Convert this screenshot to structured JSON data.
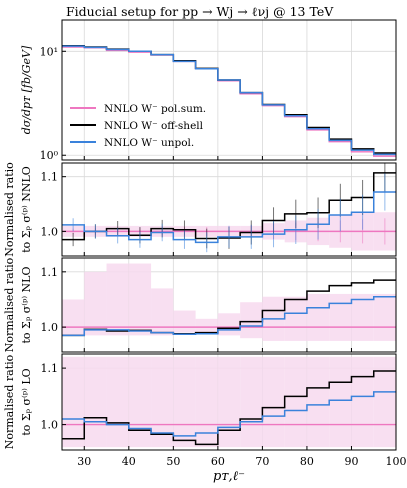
{
  "title": "Fiducial setup for pp → Wj → ℓνj @ 13 TeV",
  "colors": {
    "pol_sum": "#ee77c0",
    "off_shell": "#000000",
    "unpol": "#3a82db",
    "band": "#f7d9ee",
    "grid": "#d9d9d9"
  },
  "chart_data": [
    {
      "type": "line",
      "drawstyle": "steps",
      "ylabel": "dσ/dpᴛ [fb/GeV]",
      "yscale": "log",
      "ylim": [
        0.9,
        20
      ],
      "y_ticks": [
        {
          "v": 1,
          "label": "10⁰"
        },
        {
          "v": 10,
          "label": "10¹"
        }
      ],
      "x_edges": [
        25,
        30,
        35,
        40,
        45,
        50,
        55,
        60,
        65,
        70,
        75,
        80,
        85,
        90,
        95,
        100
      ],
      "legend": {
        "placement": "center-left",
        "entries": [
          "NNLO W⁻ pol.sum.",
          "NNLO W⁻ off-shell",
          "NNLO W⁻ unpol."
        ]
      },
      "series": [
        {
          "name": "NNLO W⁻ pol.sum.",
          "color_key": "pol_sum",
          "values": [
            11.0,
            10.8,
            10.2,
            9.8,
            9.2,
            8.0,
            6.8,
            5.2,
            3.9,
            3.0,
            2.35,
            1.75,
            1.35,
            1.08,
            0.98
          ]
        },
        {
          "name": "NNLO W⁻ off-shell",
          "color_key": "off_shell",
          "values": [
            11.3,
            11.0,
            10.5,
            10.0,
            9.3,
            8.1,
            6.85,
            5.3,
            4.0,
            3.08,
            2.45,
            1.85,
            1.43,
            1.15,
            1.05
          ]
        },
        {
          "name": "NNLO W⁻ unpol.",
          "color_key": "unpol",
          "values": [
            11.2,
            10.9,
            10.4,
            10.0,
            9.3,
            8.0,
            6.8,
            5.3,
            4.0,
            3.05,
            2.4,
            1.8,
            1.39,
            1.12,
            1.02
          ]
        }
      ]
    },
    {
      "type": "line",
      "drawstyle": "steps",
      "ylabel": [
        "Normalised ratio",
        "to Σₚ σ⁽ᵖ⁾ NNLO"
      ],
      "ylim": [
        0.955,
        1.125
      ],
      "y_ticks": [
        {
          "v": 1.0,
          "label": "1.0"
        },
        {
          "v": 1.1,
          "label": "1.1"
        }
      ],
      "x_edges": [
        25,
        30,
        35,
        40,
        45,
        50,
        55,
        60,
        65,
        70,
        75,
        80,
        85,
        90,
        95,
        100
      ],
      "band": {
        "lower": [
          0.99,
          0.99,
          0.99,
          0.99,
          0.99,
          0.99,
          0.99,
          0.99,
          0.99,
          0.985,
          0.98,
          0.975,
          0.97,
          0.965,
          0.965
        ],
        "upper": [
          1.01,
          1.01,
          1.01,
          1.01,
          1.01,
          1.01,
          1.01,
          1.01,
          1.01,
          1.015,
          1.02,
          1.025,
          1.03,
          1.035,
          1.035
        ]
      },
      "series": [
        {
          "name": "NNLO W⁻ pol.sum.",
          "color_key": "pol_sum",
          "values": [
            1.0,
            1.0,
            1.0,
            1.0,
            1.0,
            1.0,
            1.0,
            1.0,
            1.0,
            1.0,
            1.0,
            1.0,
            1.0,
            1.0,
            1.0
          ],
          "errors": [
            0.005,
            0.006,
            0.006,
            0.006,
            0.007,
            0.008,
            0.008,
            0.01,
            0.012,
            0.014,
            0.016,
            0.018,
            0.02,
            0.022,
            0.024
          ]
        },
        {
          "name": "NNLO W⁻ off-shell",
          "color_key": "off_shell",
          "values": [
            0.985,
            1.0,
            1.005,
            0.993,
            1.005,
            1.003,
            0.987,
            0.988,
            0.998,
            1.02,
            1.032,
            1.034,
            1.057,
            1.062,
            1.107
          ],
          "errors": [
            0.012,
            0.013,
            0.014,
            0.015,
            0.016,
            0.017,
            0.018,
            0.02,
            0.022,
            0.024,
            0.026,
            0.028,
            0.03,
            0.032,
            0.034
          ]
        },
        {
          "name": "NNLO W⁻ unpol.",
          "color_key": "unpol",
          "values": [
            1.012,
            1.0,
            0.992,
            0.985,
            0.998,
            0.985,
            0.98,
            0.99,
            0.99,
            0.995,
            1.003,
            1.013,
            1.03,
            1.035,
            1.072
          ],
          "errors": [
            0.012,
            0.013,
            0.014,
            0.015,
            0.016,
            0.017,
            0.018,
            0.02,
            0.022,
            0.024,
            0.026,
            0.028,
            0.03,
            0.032,
            0.034
          ]
        }
      ]
    },
    {
      "type": "line",
      "drawstyle": "steps",
      "ylabel": [
        "Normalised ratio",
        "to Σₚ σ⁽ᵖ⁾ NLO"
      ],
      "ylim": [
        0.955,
        1.125
      ],
      "y_ticks": [
        {
          "v": 1.0,
          "label": "1.0"
        },
        {
          "v": 1.1,
          "label": "1.1"
        }
      ],
      "x_edges": [
        25,
        30,
        35,
        40,
        45,
        50,
        55,
        60,
        65,
        70,
        75,
        80,
        85,
        90,
        95,
        100
      ],
      "band": {
        "lower": [
          0.985,
          0.985,
          0.985,
          0.985,
          0.985,
          0.99,
          0.99,
          0.985,
          0.98,
          0.975,
          0.975,
          0.975,
          0.975,
          0.975,
          0.975
        ],
        "upper": [
          1.05,
          1.1,
          1.115,
          1.115,
          1.07,
          1.03,
          1.015,
          1.025,
          1.045,
          1.055,
          1.055,
          1.06,
          1.06,
          1.06,
          1.06
        ]
      },
      "series": [
        {
          "name": "NNLO W⁻ pol.sum.",
          "color_key": "pol_sum",
          "values": [
            1.0,
            1.0,
            1.0,
            1.0,
            1.0,
            1.0,
            1.0,
            1.0,
            1.0,
            1.0,
            1.0,
            1.0,
            1.0,
            1.0,
            1.0
          ]
        },
        {
          "name": "NNLO W⁻ off-shell",
          "color_key": "off_shell",
          "values": [
            0.985,
            0.996,
            0.993,
            0.994,
            0.99,
            0.988,
            0.99,
            0.998,
            1.01,
            1.03,
            1.05,
            1.065,
            1.075,
            1.08,
            1.085
          ]
        },
        {
          "name": "NNLO W⁻ unpol.",
          "color_key": "unpol",
          "values": [
            0.985,
            0.995,
            0.995,
            0.993,
            0.99,
            0.987,
            0.988,
            0.995,
            1.002,
            1.015,
            1.025,
            1.035,
            1.043,
            1.05,
            1.055
          ]
        }
      ]
    },
    {
      "type": "line",
      "drawstyle": "steps",
      "ylabel": [
        "Normalised ratio",
        "to Σₚ σ⁽ᵖ⁾ LO"
      ],
      "ylim": [
        0.955,
        1.125
      ],
      "y_ticks": [
        {
          "v": 1.0,
          "label": "1.0"
        },
        {
          "v": 1.1,
          "label": "1.1"
        }
      ],
      "x_edges": [
        25,
        30,
        35,
        40,
        45,
        50,
        55,
        60,
        65,
        70,
        75,
        80,
        85,
        90,
        95,
        100
      ],
      "xlabel": "pᴛ,ℓ⁻",
      "x_ticks": [
        30,
        40,
        50,
        60,
        70,
        80,
        90,
        100
      ],
      "band": {
        "lower": [
          0.96,
          0.96,
          0.96,
          0.96,
          0.96,
          0.96,
          0.96,
          0.96,
          0.96,
          0.96,
          0.96,
          0.96,
          0.96,
          0.96,
          0.96
        ],
        "upper": [
          1.12,
          1.12,
          1.12,
          1.12,
          1.12,
          1.12,
          1.12,
          1.12,
          1.12,
          1.12,
          1.12,
          1.12,
          1.12,
          1.12,
          1.12
        ]
      },
      "series": [
        {
          "name": "NNLO W⁻ pol.sum.",
          "color_key": "pol_sum",
          "values": [
            1.0,
            1.0,
            1.0,
            1.0,
            1.0,
            1.0,
            1.0,
            1.0,
            1.0,
            1.0,
            1.0,
            1.0,
            1.0,
            1.0,
            1.0
          ]
        },
        {
          "name": "NNLO W⁻ off-shell",
          "color_key": "off_shell",
          "values": [
            0.975,
            1.012,
            1.003,
            0.99,
            0.983,
            0.972,
            0.965,
            0.99,
            1.01,
            1.03,
            1.05,
            1.065,
            1.075,
            1.085,
            1.095
          ]
        },
        {
          "name": "NNLO W⁻ unpol.",
          "color_key": "unpol",
          "values": [
            1.01,
            1.005,
            1.0,
            0.993,
            0.985,
            0.98,
            0.985,
            0.995,
            1.005,
            1.015,
            1.025,
            1.035,
            1.043,
            1.05,
            1.058
          ]
        }
      ]
    }
  ]
}
